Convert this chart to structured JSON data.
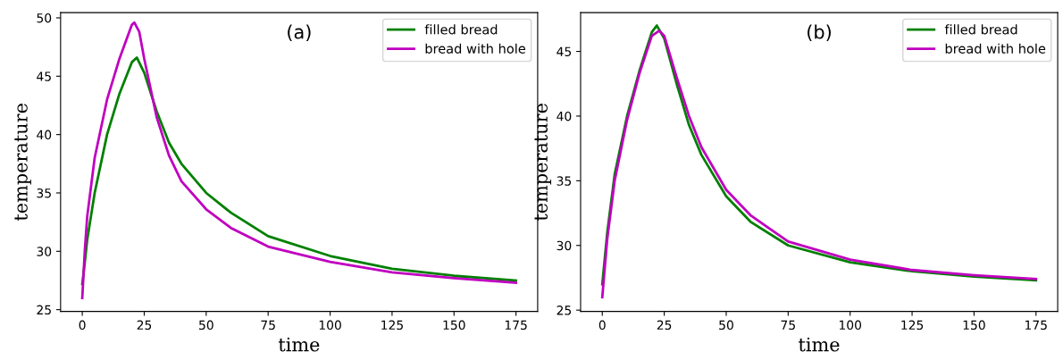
{
  "chart_data": [
    {
      "type": "line",
      "xlabel": "time",
      "ylabel": "temperature",
      "annotations": [
        "(a)"
      ],
      "xlim": [
        -8.75,
        183.75
      ],
      "ylim": [
        24.85,
        50.45
      ],
      "xticks": [
        0,
        25,
        50,
        75,
        100,
        125,
        150,
        175
      ],
      "yticks": [
        25,
        30,
        35,
        40,
        45,
        50
      ],
      "legend": "top right",
      "grid": false,
      "series": [
        {
          "name": "filled bread",
          "color": "#008000",
          "x": [
            0,
            1,
            2,
            5,
            10,
            15,
            20,
            22,
            25,
            30,
            35,
            40,
            50,
            60,
            75,
            100,
            125,
            150,
            175
          ],
          "values": [
            27.2,
            29,
            31,
            35,
            40,
            43.5,
            46.2,
            46.6,
            45.3,
            42,
            39.3,
            37.5,
            35,
            33.3,
            31.3,
            29.6,
            28.5,
            27.9,
            27.5
          ]
        },
        {
          "name": "bread with hole",
          "color": "#c000c0",
          "x": [
            0,
            1,
            2,
            5,
            10,
            15,
            20,
            21,
            23,
            25,
            30,
            35,
            40,
            50,
            60,
            75,
            100,
            125,
            150,
            175
          ],
          "values": [
            26,
            30,
            33,
            38,
            43,
            46.5,
            49.4,
            49.6,
            48.8,
            46.5,
            41.5,
            38.2,
            36,
            33.6,
            32,
            30.4,
            29.1,
            28.2,
            27.7,
            27.3
          ]
        }
      ]
    },
    {
      "type": "line",
      "xlabel": "time",
      "ylabel": "temperature",
      "annotations": [
        "(b)"
      ],
      "xlim": [
        -8.75,
        183.75
      ],
      "ylim": [
        24.9,
        48.0
      ],
      "xticks": [
        0,
        25,
        50,
        75,
        100,
        125,
        150,
        175
      ],
      "yticks": [
        25,
        30,
        35,
        40,
        45
      ],
      "legend": "top right",
      "grid": false,
      "series": [
        {
          "name": "filled bread",
          "color": "#008000",
          "x": [
            0,
            2,
            5,
            10,
            15,
            20,
            22,
            25,
            30,
            35,
            40,
            50,
            60,
            75,
            100,
            125,
            150,
            175
          ],
          "values": [
            27,
            31,
            35.5,
            40,
            43.5,
            46.5,
            47,
            46,
            42.5,
            39.3,
            37,
            33.8,
            31.8,
            30,
            28.7,
            28,
            27.6,
            27.3
          ]
        },
        {
          "name": "bread with hole",
          "color": "#c000c0",
          "x": [
            0,
            2,
            5,
            10,
            15,
            20,
            23,
            25,
            30,
            35,
            40,
            50,
            60,
            75,
            100,
            125,
            150,
            175
          ],
          "values": [
            26,
            30.5,
            35,
            39.7,
            43.3,
            46.2,
            46.6,
            46.2,
            43,
            40,
            37.6,
            34.3,
            32.3,
            30.3,
            28.9,
            28.1,
            27.7,
            27.4
          ]
        }
      ]
    }
  ]
}
